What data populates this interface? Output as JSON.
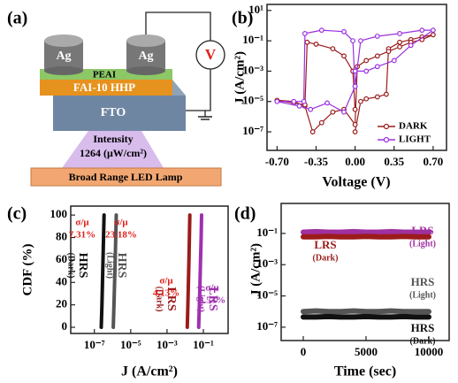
{
  "diagram": {
    "panel_label": "(a)",
    "electrode_left": "Ag",
    "electrode_right": "Ag",
    "meter": "V",
    "layer_top": "PEAI",
    "layer_middle": "FAI-10 HHP",
    "layer_bottom": "FTO",
    "intensity_title": "Intensity",
    "intensity_value": "1264 (μW/cm²)",
    "lamp": "Broad Range LED Lamp"
  },
  "chart_data": [
    {
      "type": "line",
      "panel_label": "(b)",
      "x_label": "Voltage (V)",
      "y_label": "J (A/cm²)",
      "yscale": "log",
      "markers": true,
      "legend": "lower right",
      "xlim": [
        -0.79,
        0.82
      ],
      "ylim": [
        6e-09,
        25
      ],
      "xticks": [
        {
          "value": -0.7,
          "label": "-0.70"
        },
        {
          "value": -0.35,
          "label": "-0.35"
        },
        {
          "value": 0,
          "label": "0.00"
        },
        {
          "value": 0.35,
          "label": "0.35"
        },
        {
          "value": 0.7,
          "label": "0.70"
        }
      ],
      "yticks": [
        {
          "value": 10,
          "label": "10¹"
        },
        {
          "value": 0.1,
          "label": "10⁻¹"
        },
        {
          "value": 0.001,
          "label": "10⁻³"
        },
        {
          "value": 1e-05,
          "label": "10⁻⁵"
        },
        {
          "value": 1e-07,
          "label": "10⁻⁷"
        }
      ],
      "series": [
        {
          "name": "DARK",
          "color": "#9b1b1b",
          "x": [
            0,
            0.05,
            0.1,
            0.2,
            0.28,
            0.3,
            0.4,
            0.5,
            0.6,
            0.7,
            0.6,
            0.5,
            0.4,
            0.3,
            0.2,
            0.1,
            0.02,
            0,
            -0.1,
            -0.2,
            -0.3,
            -0.38,
            -0.45,
            -0.55,
            -0.7,
            -0.55,
            -0.45,
            -0.43,
            -0.35,
            -0.2,
            -0.1,
            -0.02,
            0
          ],
          "values": [
            1e-07,
            1e-05,
            1.5e-05,
            2e-05,
            3e-05,
            0.03,
            0.08,
            0.12,
            0.18,
            0.25,
            0.12,
            0.08,
            0.04,
            0.02,
            0.01,
            0.005,
            0.002,
            3e-07,
            3e-06,
            2e-06,
            4e-07,
            1e-07,
            5e-06,
            1e-05,
            1.2e-05,
            8e-06,
            6e-06,
            0.08,
            0.06,
            0.03,
            0.01,
            0.001,
            3e-06
          ]
        },
        {
          "name": "LIGHT",
          "color": "#9b30e0",
          "x": [
            0,
            0.1,
            0.2,
            0.35,
            0.5,
            0.7,
            0.6,
            0.4,
            0.2,
            0.05,
            0,
            -0.1,
            -0.25,
            -0.4,
            -0.5,
            -0.7,
            -0.55,
            -0.46,
            -0.45,
            -0.3,
            -0.1,
            -0.02,
            0
          ],
          "values": [
            0.001,
            0.001,
            0.002,
            0.005,
            0.05,
            0.5,
            0.5,
            0.3,
            0.2,
            0.1,
            0.0001,
            2e-06,
            8e-06,
            3e-06,
            5e-06,
            1e-05,
            1e-05,
            1e-05,
            0.3,
            0.5,
            0.4,
            0.1,
            0.0001
          ]
        }
      ]
    },
    {
      "type": "line",
      "panel_label": "(c)",
      "x_label": "J (A/cm²)",
      "y_label": "CDF (%)",
      "xscale": "log",
      "cv_symbol": "σ/μ",
      "xlim": [
        5e-09,
        2.3
      ],
      "ylim": [
        -5.5,
        108
      ],
      "xticks": [
        {
          "value": 1e-07,
          "label": "10⁻⁷"
        },
        {
          "value": 1e-05,
          "label": "10⁻⁵"
        },
        {
          "value": 0.001,
          "label": "10⁻³"
        },
        {
          "value": 0.1,
          "label": "10⁻¹"
        }
      ],
      "yticks": [
        0,
        20,
        40,
        60,
        80,
        100
      ],
      "series": [
        {
          "name": "HRS",
          "sub": "(Dark)",
          "color": "#111111",
          "cv": 7.31,
          "cv_label": "7.31%",
          "cv_color": "#e0201b",
          "x": [
            2.4e-07,
            2.6e-07,
            2.8e-07,
            3e-07,
            3.2e-07,
            3.4e-07
          ],
          "values": [
            0,
            20,
            40,
            60,
            80,
            100
          ]
        },
        {
          "name": "HRS",
          "sub": "(Light)",
          "color": "#555555",
          "cv": 23.18,
          "cv_label": "23.18%",
          "cv_color": "#e0201b",
          "x": [
            1.1e-06,
            1.2e-06,
            1.3e-06,
            1.4e-06,
            1.5e-06,
            1.6e-06
          ],
          "values": [
            0,
            20,
            40,
            60,
            80,
            100
          ]
        },
        {
          "name": "LRS",
          "sub": "(Dark)",
          "color": "#9b1b1b",
          "cv": 4.13,
          "cv_label": "4.13%",
          "cv_color": "#e0201b",
          "x": [
            0.013,
            0.014,
            0.015,
            0.016,
            0.017,
            0.018
          ],
          "values": [
            0,
            20,
            40,
            60,
            80,
            100
          ]
        },
        {
          "name": "LRS",
          "sub": "(Light)",
          "color": "#a030b0",
          "cv": 8.53,
          "cv_label": "8.53%",
          "cv_color": "#a030b0",
          "x": [
            0.055,
            0.06,
            0.065,
            0.07,
            0.075,
            0.08
          ],
          "values": [
            0,
            20,
            40,
            60,
            80,
            100
          ]
        }
      ]
    },
    {
      "type": "line",
      "panel_label": "(d)",
      "x_label": "Time (sec)",
      "y_label": "J (A/cm²)",
      "yscale": "log",
      "xlim": [
        -1760,
        11620
      ],
      "ylim": [
        1.4e-08,
        8.3
      ],
      "xticks": [
        0,
        5000,
        10000
      ],
      "yticks": [
        {
          "value": 0.1,
          "label": "10⁻¹"
        },
        {
          "value": 0.001,
          "label": "10⁻³"
        },
        {
          "value": 1e-05,
          "label": "10⁻⁵"
        },
        {
          "value": 1e-07,
          "label": "10⁻⁷"
        }
      ],
      "series": [
        {
          "name": "LRS",
          "sub": "(Light)",
          "color": "#a030a0",
          "x": [
            0,
            1000,
            2000,
            3000,
            4000,
            5000,
            6000,
            7000,
            8000,
            9000,
            10000
          ],
          "values": [
            0.12,
            0.13,
            0.12,
            0.12,
            0.13,
            0.12,
            0.12,
            0.13,
            0.12,
            0.12,
            0.12
          ]
        },
        {
          "name": "LRS",
          "sub": "(Dark)",
          "color": "#9b1b1b",
          "x": [
            0,
            1000,
            2000,
            3000,
            4000,
            5000,
            6000,
            7000,
            8000,
            9000,
            10000
          ],
          "values": [
            0.06,
            0.06,
            0.065,
            0.06,
            0.06,
            0.065,
            0.06,
            0.06,
            0.065,
            0.06,
            0.06
          ]
        },
        {
          "name": "HRS",
          "sub": "(Light)",
          "color": "#555555",
          "x": [
            0,
            1000,
            2000,
            3000,
            4000,
            5000,
            6000,
            7000,
            8000,
            9000,
            10000
          ],
          "values": [
            1e-06,
            1.1e-06,
            1e-06,
            1e-06,
            1.1e-06,
            1e-06,
            1e-06,
            1.1e-06,
            1e-06,
            1e-06,
            1e-06
          ]
        },
        {
          "name": "HRS",
          "sub": "(Dark)",
          "color": "#111111",
          "x": [
            0,
            1000,
            2000,
            3000,
            4000,
            5000,
            6000,
            7000,
            8000,
            9000,
            10000
          ],
          "values": [
            4.5e-07,
            4.5e-07,
            4.8e-07,
            4.5e-07,
            4.5e-07,
            4.8e-07,
            4.5e-07,
            4.5e-07,
            4.8e-07,
            4.5e-07,
            4.5e-07
          ]
        }
      ]
    }
  ]
}
